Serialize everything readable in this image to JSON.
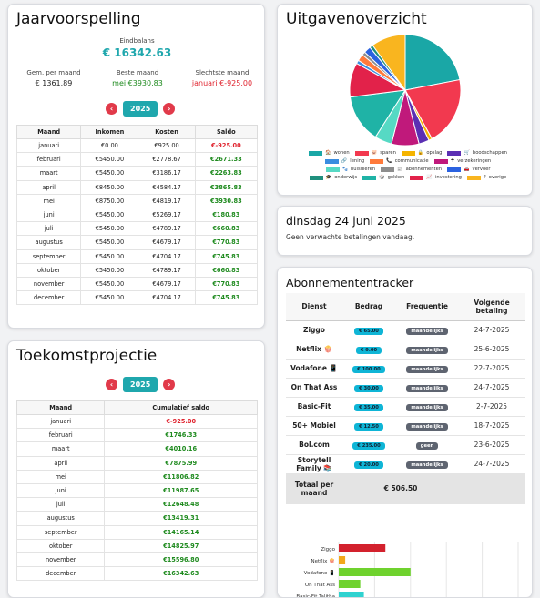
{
  "jaar": {
    "title": "Jaarvoorspelling",
    "eindbalans_label": "Eindbalans",
    "eindbalans_value": "€ 16342.63",
    "gem_label": "Gem. per maand",
    "gem_value": "€ 1361.89",
    "beste_label": "Beste maand",
    "beste_value": "mei €3930.83",
    "slechtste_label": "Slechtste maand",
    "slechtste_value": "januari €-925.00",
    "year": "2025",
    "headers": [
      "Maand",
      "Inkomen",
      "Kosten",
      "Saldo"
    ],
    "rows": [
      [
        "januari",
        "€0.00",
        "€925.00",
        "€-925.00"
      ],
      [
        "februari",
        "€5450.00",
        "€2778.67",
        "€2671.33"
      ],
      [
        "maart",
        "€5450.00",
        "€3186.17",
        "€2263.83"
      ],
      [
        "april",
        "€8450.00",
        "€4584.17",
        "€3865.83"
      ],
      [
        "mei",
        "€8750.00",
        "€4819.17",
        "€3930.83"
      ],
      [
        "juni",
        "€5450.00",
        "€5269.17",
        "€180.83"
      ],
      [
        "juli",
        "€5450.00",
        "€4789.17",
        "€660.83"
      ],
      [
        "augustus",
        "€5450.00",
        "€4679.17",
        "€770.83"
      ],
      [
        "september",
        "€5450.00",
        "€4704.17",
        "€745.83"
      ],
      [
        "oktober",
        "€5450.00",
        "€4789.17",
        "€660.83"
      ],
      [
        "november",
        "€5450.00",
        "€4679.17",
        "€770.83"
      ],
      [
        "december",
        "€5450.00",
        "€4704.17",
        "€745.83"
      ]
    ]
  },
  "toekomst": {
    "title": "Toekomstprojectie",
    "year": "2025",
    "headers": [
      "Maand",
      "Cumulatief saldo"
    ],
    "rows": [
      [
        "januari",
        "€-925.00"
      ],
      [
        "februari",
        "€1746.33"
      ],
      [
        "maart",
        "€4010.16"
      ],
      [
        "april",
        "€7875.99"
      ],
      [
        "mei",
        "€11806.82"
      ],
      [
        "juni",
        "€11987.65"
      ],
      [
        "juli",
        "€12648.48"
      ],
      [
        "augustus",
        "€13419.31"
      ],
      [
        "september",
        "€14165.14"
      ],
      [
        "oktober",
        "€14825.97"
      ],
      [
        "november",
        "€15596.80"
      ],
      [
        "december",
        "€16342.63"
      ]
    ]
  },
  "uitgaven": {
    "title": "Uitgavenoverzicht",
    "legend": [
      {
        "icon": "🏠",
        "label": "wonen",
        "color": "#1aa7a6"
      },
      {
        "icon": "🐷",
        "label": "sparen",
        "color": "#f2394f"
      },
      {
        "icon": "🔒",
        "label": "opslag",
        "color": "#f5b400"
      },
      {
        "icon": "🛒",
        "label": "boodschappen",
        "color": "#5b2fb3"
      },
      {
        "icon": "🔗",
        "label": "lening",
        "color": "#3a8de0"
      },
      {
        "icon": "📞",
        "label": "communicatie",
        "color": "#ff7a3b"
      },
      {
        "icon": "☂",
        "label": "verzekeringen",
        "color": "#c0197b"
      },
      {
        "icon": "🐾",
        "label": "huisdieren",
        "color": "#56d9c4"
      },
      {
        "icon": "📰",
        "label": "abonnementen",
        "color": "#8d8d8d"
      },
      {
        "icon": "🚗",
        "label": "vervoer",
        "color": "#2b62e0"
      },
      {
        "icon": "🎓",
        "label": "onderwijs",
        "color": "#20907e"
      },
      {
        "icon": "🎲",
        "label": "gokken",
        "color": "#1fb3a6"
      },
      {
        "icon": "📈",
        "label": "investering",
        "color": "#e2224a"
      },
      {
        "icon": "?",
        "label": "overige",
        "color": "#f9b51f"
      }
    ]
  },
  "datum": {
    "title": "dinsdag 24 juni 2025",
    "message": "Geen verwachte betalingen vandaag."
  },
  "abonnementen": {
    "title": "Abonnemententracker",
    "headers": [
      "Dienst",
      "Bedrag",
      "Frequentie",
      "Volgende betaling"
    ],
    "rows": [
      {
        "dienst": "Ziggo",
        "bedrag": "€ 65.00",
        "freq": "maandelijks",
        "volgende": "24-7-2025"
      },
      {
        "dienst": "Netflix 🍿",
        "bedrag": "€ 9.00",
        "freq": "maandelijks",
        "volgende": "25-6-2025"
      },
      {
        "dienst": "Vodafone 📱",
        "bedrag": "€ 100.00",
        "freq": "maandelijks",
        "volgende": "22-7-2025"
      },
      {
        "dienst": "On That Ass",
        "bedrag": "€ 30.00",
        "freq": "maandelijks",
        "volgende": "24-7-2025"
      },
      {
        "dienst": "Basic-Fit",
        "bedrag": "€ 35.00",
        "freq": "maandelijks",
        "volgende": "2-7-2025"
      },
      {
        "dienst": "50+ Mobiel",
        "bedrag": "€ 12.50",
        "freq": "maandelijks",
        "volgende": "18-7-2025"
      },
      {
        "dienst": "Bol.com",
        "bedrag": "€ 235.00",
        "freq": "geen",
        "volgende": "23-6-2025"
      },
      {
        "dienst": "Storytell Family 📚",
        "bedrag": "€ 20.00",
        "freq": "maandelijks",
        "volgende": "24-7-2025"
      }
    ],
    "totaal_label": "Totaal per maand",
    "totaal_value": "€ 506.50"
  },
  "chart_data": [
    {
      "type": "pie",
      "categories": [
        "wonen",
        "sparen",
        "opslag",
        "boodschappen",
        "lening",
        "communicatie",
        "verzekeringen",
        "huisdieren",
        "abonnementen",
        "vervoer",
        "onderwijs",
        "gokken",
        "investering",
        "overige"
      ],
      "values": [
        22,
        20,
        1,
        3,
        1,
        2,
        8,
        5,
        1,
        2,
        1,
        14,
        10,
        10
      ],
      "colors": [
        "#1aa7a6",
        "#f2394f",
        "#f5b400",
        "#5b2fb3",
        "#3a8de0",
        "#ff7a3b",
        "#c0197b",
        "#56d9c4",
        "#8d8d8d",
        "#2b62e0",
        "#20907e",
        "#1fb3a6",
        "#e2224a",
        "#f9b51f"
      ]
    },
    {
      "type": "bar",
      "orientation": "horizontal",
      "categories": [
        "Ziggo",
        "Netflix 🍿",
        "Vodafone 📱",
        "On That Ass",
        "Basic-Fit Talitha"
      ],
      "values": [
        65,
        9,
        100,
        30,
        35
      ],
      "colors": [
        "#d3212d",
        "#f2a81d",
        "#6fd22e",
        "#6fd22e",
        "#2fd2d0"
      ],
      "xlim": [
        0,
        250
      ]
    }
  ]
}
